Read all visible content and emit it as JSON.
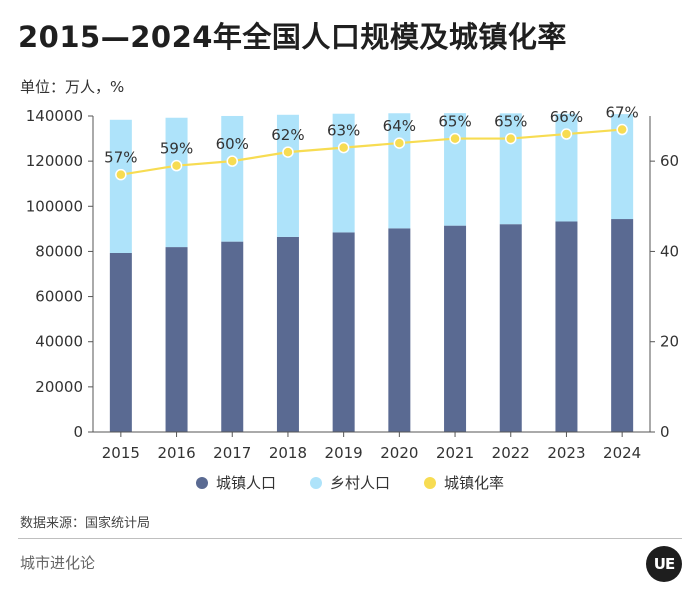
{
  "title": "2015—2024年全国人口规模及城镇化率",
  "unit_label": "单位：万人，%",
  "source": "数据来源：国家统计局",
  "brand": "城市进化论",
  "logo_text": "UE",
  "colors": {
    "urban": "#5a6a92",
    "rural": "#aee3fa",
    "rate": "#f7dc52",
    "rate_dot_stroke": "#ffffff",
    "axis": "#555555"
  },
  "chart_data": {
    "type": "bar",
    "stacked": true,
    "categories": [
      "2015",
      "2016",
      "2017",
      "2018",
      "2019",
      "2020",
      "2021",
      "2022",
      "2023",
      "2024"
    ],
    "series": [
      {
        "name": "城镇人口",
        "axis": "left",
        "values": [
          79302,
          81924,
          84343,
          86433,
          88426,
          90220,
          91425,
          92071,
          93267,
          94350
        ]
      },
      {
        "name": "乡村人口",
        "axis": "left",
        "values": [
          59024,
          57308,
          55668,
          54108,
          52582,
          50992,
          49835,
          49104,
          47700,
          46478
        ]
      }
    ],
    "line": {
      "name": "城镇化率",
      "axis": "right",
      "values": [
        57,
        59,
        60,
        62,
        63,
        64,
        65,
        65,
        66,
        67
      ],
      "labels": [
        "57%",
        "59%",
        "60%",
        "62%",
        "63%",
        "64%",
        "65%",
        "65%",
        "66%",
        "67%"
      ]
    },
    "y_left": {
      "min": 0,
      "max": 140000,
      "ticks": [
        "0",
        "20000",
        "40000",
        "60000",
        "80000",
        "100000",
        "120000",
        "140000"
      ]
    },
    "y_right": {
      "min": 0,
      "max": 70,
      "ticks": [
        "0",
        "20",
        "40",
        "60"
      ]
    },
    "legend": [
      "城镇人口",
      "乡村人口",
      "城镇化率"
    ],
    "legend_position": "bottom"
  }
}
